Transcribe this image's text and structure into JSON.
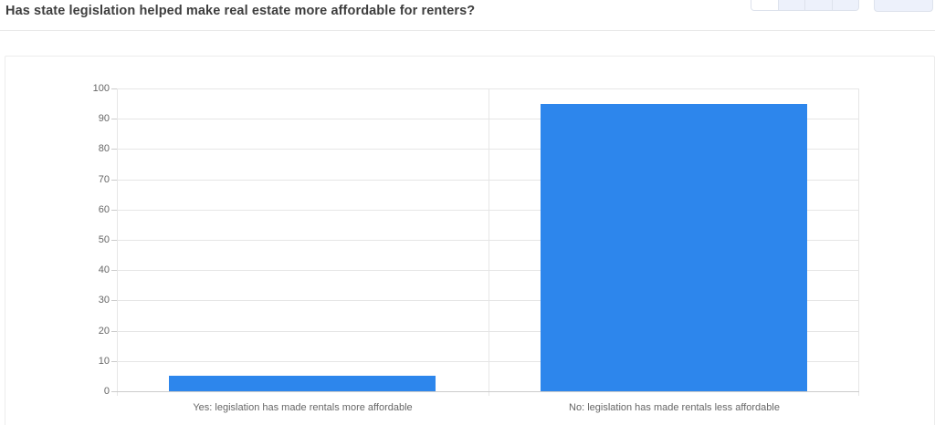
{
  "header": {
    "title": "Has state legislation helped make real estate more affordable for renters?"
  },
  "toolbar": {
    "menu_icon": "more-options",
    "active_segment_index": 0,
    "segment_count": 4
  },
  "chart_data": {
    "type": "bar",
    "title": "",
    "xlabel": "",
    "ylabel": "",
    "categories": [
      "Yes: legislation has made rentals more affordable",
      "No: legislation has made rentals less affordable"
    ],
    "values": [
      5,
      95
    ],
    "ylim": [
      0,
      100
    ],
    "yticks": [
      0,
      10,
      20,
      30,
      40,
      50,
      60,
      70,
      80,
      90,
      100
    ],
    "grid": true,
    "legend": "none",
    "bar_color": "#2d86ec",
    "gridline_color": "#e6e6e6",
    "axis_line_color": "#cccccc",
    "tick_label_color": "#666666"
  }
}
